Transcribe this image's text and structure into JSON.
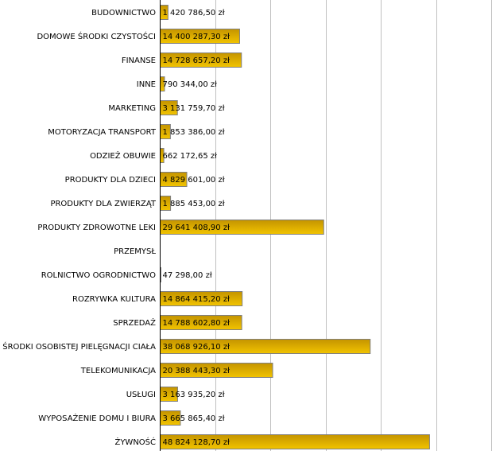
{
  "chart_data": {
    "type": "bar",
    "orientation": "horizontal",
    "title": "",
    "xlabel": "",
    "ylabel": "",
    "xlim": [
      0,
      60000000
    ],
    "grid": true,
    "grid_step": 10000000,
    "bar_color": "#e8b800",
    "categories": [
      "BUDOWNICTWO",
      "DOMOWE ŚRODKI CZYSTOŚCI",
      "FINANSE",
      "INNE",
      "MARKETING",
      "MOTORYZACJA TRANSPORT",
      "ODZIEŻ OBUWIE",
      "PRODUKTY DLA DZIECI",
      "PRODUKTY DLA ZWIERZĄT",
      "PRODUKTY ZDROWOTNE LEKI",
      "PRZEMYSŁ",
      "ROLNICTWO OGRODNICTWO",
      "ROZRYWKA KULTURA",
      "SPRZEDAŻ",
      "ŚRODKI OSOBISTEJ PIELĘGNACJI CIAŁA",
      "TELEKOMUNIKACJA",
      "USŁUGI",
      "WYPOSAŻENIE DOMU I BIURA",
      "ŻYWNOŚĆ"
    ],
    "values": [
      1420786.5,
      14400287.3,
      14728657.2,
      790344.0,
      3131759.7,
      1853386.0,
      662172.65,
      4829601.0,
      1885453.0,
      29641408.9,
      null,
      47298.0,
      14864415.2,
      14788602.8,
      38068926.1,
      20388443.3,
      3163935.2,
      3665865.4,
      48824128.7
    ],
    "labels": [
      "1 420 786,50 zł",
      "14 400 287,30 zł",
      "14 728 657,20 zł",
      "790 344,00 zł",
      "3 131 759,70 zł",
      "1 853 386,00 zł",
      "662 172,65 zł",
      "4 829 601,00 zł",
      "1 885 453,00 zł",
      "29 641 408,90 zł",
      "",
      "47 298,00 zł",
      "14 864 415,20 zł",
      "14 788 602,80 zł",
      "38 068 926,10 zł",
      "20 388 443,30 zł",
      "3 163 935,20 zł",
      "3 665 865,40 zł",
      "48 824 128,70 zł"
    ]
  }
}
